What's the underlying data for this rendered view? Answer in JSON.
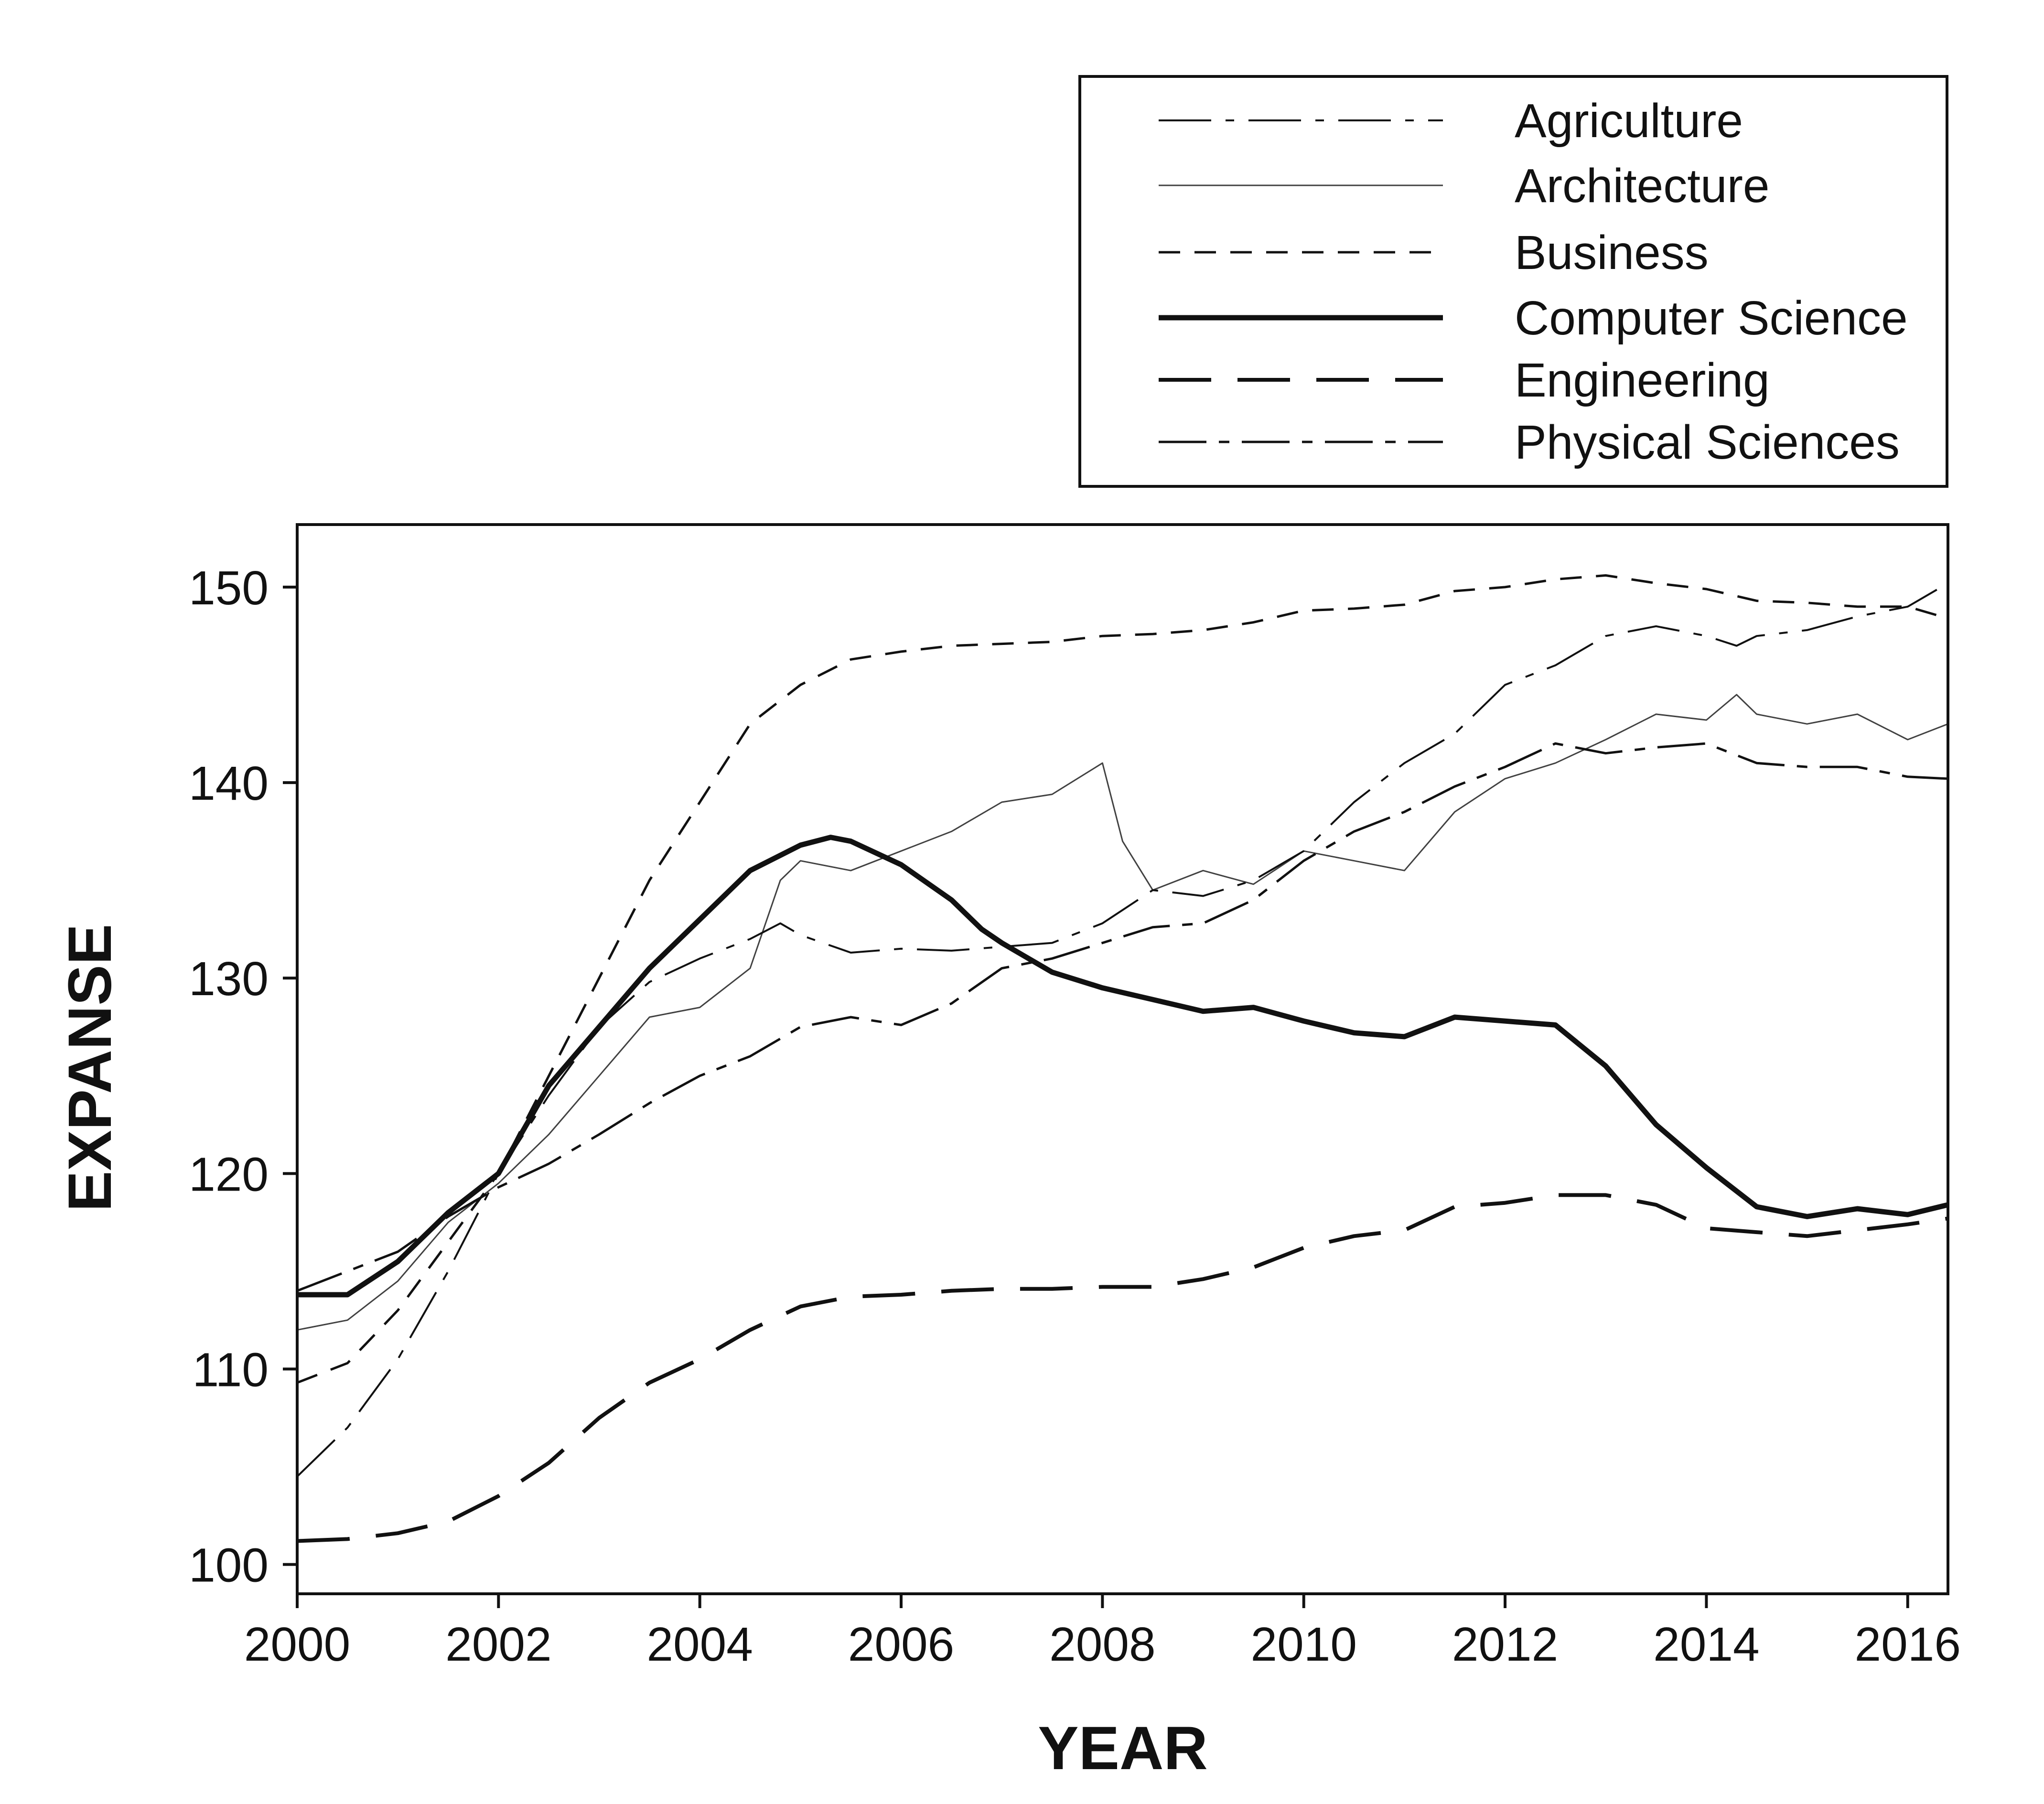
{
  "chart_data": {
    "type": "line",
    "title": "",
    "xlabel": "YEAR",
    "ylabel": "EXPANSE",
    "xlim": [
      2000,
      2016.4
    ],
    "ylim": [
      98.5,
      153.2
    ],
    "xticks": [
      2000,
      2002,
      2004,
      2006,
      2008,
      2010,
      2012,
      2014,
      2016
    ],
    "yticks": [
      100,
      110,
      120,
      130,
      140,
      150
    ],
    "grid": false,
    "legend_position": "top-right, above plot",
    "series": [
      {
        "name": "Agriculture",
        "style": "dash-dot",
        "x": [
          2000,
          2000.5,
          2001,
          2001.5,
          2002,
          2002.5,
          2003,
          2003.5,
          2004,
          2004.5,
          2004.8,
          2005,
          2005.5,
          2006,
          2006.5,
          2007,
          2007.5,
          2008,
          2008.5,
          2009,
          2009.5,
          2010,
          2010.5,
          2011,
          2011.5,
          2012,
          2012.5,
          2013,
          2013.5,
          2014,
          2014.3,
          2014.5,
          2015,
          2015.5,
          2016,
          2016.4
        ],
        "y": [
          104.5,
          107,
          110.5,
          115,
          120,
          124,
          127.5,
          129.8,
          131,
          132,
          132.8,
          132.2,
          131.3,
          131.5,
          131.4,
          131.6,
          131.8,
          132.8,
          134.5,
          134.2,
          135,
          136.5,
          139,
          141,
          142.5,
          145,
          146,
          147.5,
          148,
          147.5,
          147,
          147.5,
          147.8,
          148.5,
          149,
          150.2
        ]
      },
      {
        "name": "Architecture",
        "style": "thin-solid",
        "x": [
          2000,
          2000.5,
          2001,
          2001.5,
          2002,
          2002.5,
          2003,
          2003.5,
          2004,
          2004.5,
          2004.8,
          2005,
          2005.5,
          2006,
          2006.5,
          2007,
          2007.5,
          2008,
          2008.2,
          2008.5,
          2009,
          2009.5,
          2010,
          2010.5,
          2011,
          2011.5,
          2012,
          2012.5,
          2013,
          2013.5,
          2014,
          2014.3,
          2014.5,
          2015,
          2015.5,
          2016,
          2016.4
        ],
        "y": [
          112,
          112.5,
          114.5,
          117.5,
          119.5,
          122,
          125,
          128,
          128.5,
          130.5,
          135,
          136,
          135.5,
          136.5,
          137.5,
          139,
          139.4,
          141,
          137,
          134.5,
          135.5,
          134.8,
          136.5,
          136,
          135.5,
          138.5,
          140.2,
          141,
          142.2,
          143.5,
          143.2,
          144.5,
          143.5,
          143,
          143.5,
          142.2,
          143
        ]
      },
      {
        "name": "Business",
        "style": "short-dash",
        "x": [
          2000,
          2000.5,
          2001,
          2001.5,
          2002,
          2002.5,
          2003,
          2003.5,
          2004,
          2004.5,
          2005,
          2005.5,
          2006,
          2006.5,
          2007,
          2007.5,
          2008,
          2008.5,
          2009,
          2009.5,
          2010,
          2010.5,
          2011,
          2011.5,
          2012,
          2012.5,
          2013,
          2013.5,
          2014,
          2014.5,
          2015,
          2015.5,
          2016,
          2016.4
        ],
        "y": [
          109.3,
          110.3,
          113,
          116.5,
          120,
          125,
          130,
          135,
          139,
          143,
          145,
          146.3,
          146.7,
          147,
          147.1,
          147.2,
          147.5,
          147.6,
          147.8,
          148.2,
          148.8,
          148.9,
          149.1,
          149.8,
          150,
          150.4,
          150.6,
          150.2,
          149.9,
          149.3,
          149.2,
          149,
          149,
          148.4
        ]
      },
      {
        "name": "Computer Science",
        "style": "thick-solid",
        "x": [
          2000,
          2000.5,
          2001,
          2001.5,
          2002,
          2002.5,
          2003,
          2003.5,
          2004,
          2004.5,
          2005,
          2005.3,
          2005.5,
          2006,
          2006.5,
          2006.8,
          2007,
          2007.5,
          2008,
          2008.5,
          2009,
          2009.5,
          2010,
          2010.5,
          2011,
          2011.5,
          2012,
          2012.5,
          2013,
          2013.5,
          2014,
          2014.5,
          2015,
          2015.5,
          2016,
          2016.4
        ],
        "y": [
          113.8,
          113.8,
          115.5,
          118,
          120,
          124.5,
          127.5,
          130.5,
          133,
          135.5,
          136.8,
          137.2,
          137,
          135.8,
          134,
          132.5,
          131.8,
          130.3,
          129.5,
          128.9,
          128.3,
          128.5,
          127.8,
          127.2,
          127,
          128,
          127.8,
          127.6,
          125.5,
          122.5,
          120.3,
          118.3,
          117.8,
          118.2,
          117.9,
          118.4
        ]
      },
      {
        "name": "Engineering",
        "style": "long-dash",
        "x": [
          2000,
          2000.5,
          2001,
          2001.5,
          2002,
          2002.5,
          2003,
          2003.5,
          2004,
          2004.5,
          2005,
          2005.5,
          2006,
          2006.5,
          2007,
          2007.5,
          2008,
          2008.5,
          2009,
          2009.5,
          2010,
          2010.5,
          2011,
          2011.5,
          2012,
          2012.5,
          2013,
          2013.5,
          2014,
          2014.5,
          2015,
          2015.5,
          2016,
          2016.4
        ],
        "y": [
          101.2,
          101.3,
          101.6,
          102.2,
          103.5,
          105.2,
          107.5,
          109.3,
          110.5,
          112,
          113.2,
          113.7,
          113.8,
          114,
          114.1,
          114.1,
          114.2,
          114.2,
          114.6,
          115.2,
          116.2,
          116.8,
          117.1,
          118.3,
          118.5,
          118.9,
          118.9,
          118.4,
          117.2,
          117,
          116.8,
          117.1,
          117.4,
          117.7
        ]
      },
      {
        "name": "Physical Sciences",
        "style": "dash-dot-dot",
        "x": [
          2000,
          2000.5,
          2001,
          2001.5,
          2002,
          2002.5,
          2003,
          2003.5,
          2004,
          2004.5,
          2005,
          2005.5,
          2006,
          2006.5,
          2007,
          2007.5,
          2008,
          2008.5,
          2009,
          2009.5,
          2010,
          2010.5,
          2011,
          2011.5,
          2012,
          2012.5,
          2013,
          2013.5,
          2014,
          2014.5,
          2015,
          2015.5,
          2016,
          2016.4
        ],
        "y": [
          114,
          115,
          116,
          117.8,
          119.3,
          120.5,
          122,
          123.6,
          125,
          126,
          127.5,
          128,
          127.6,
          128.7,
          130.5,
          131,
          131.8,
          132.6,
          132.8,
          134,
          136,
          137.5,
          138.5,
          139.8,
          140.8,
          142,
          141.5,
          141.8,
          142,
          141,
          140.8,
          140.8,
          140.3,
          140.2
        ]
      }
    ]
  }
}
